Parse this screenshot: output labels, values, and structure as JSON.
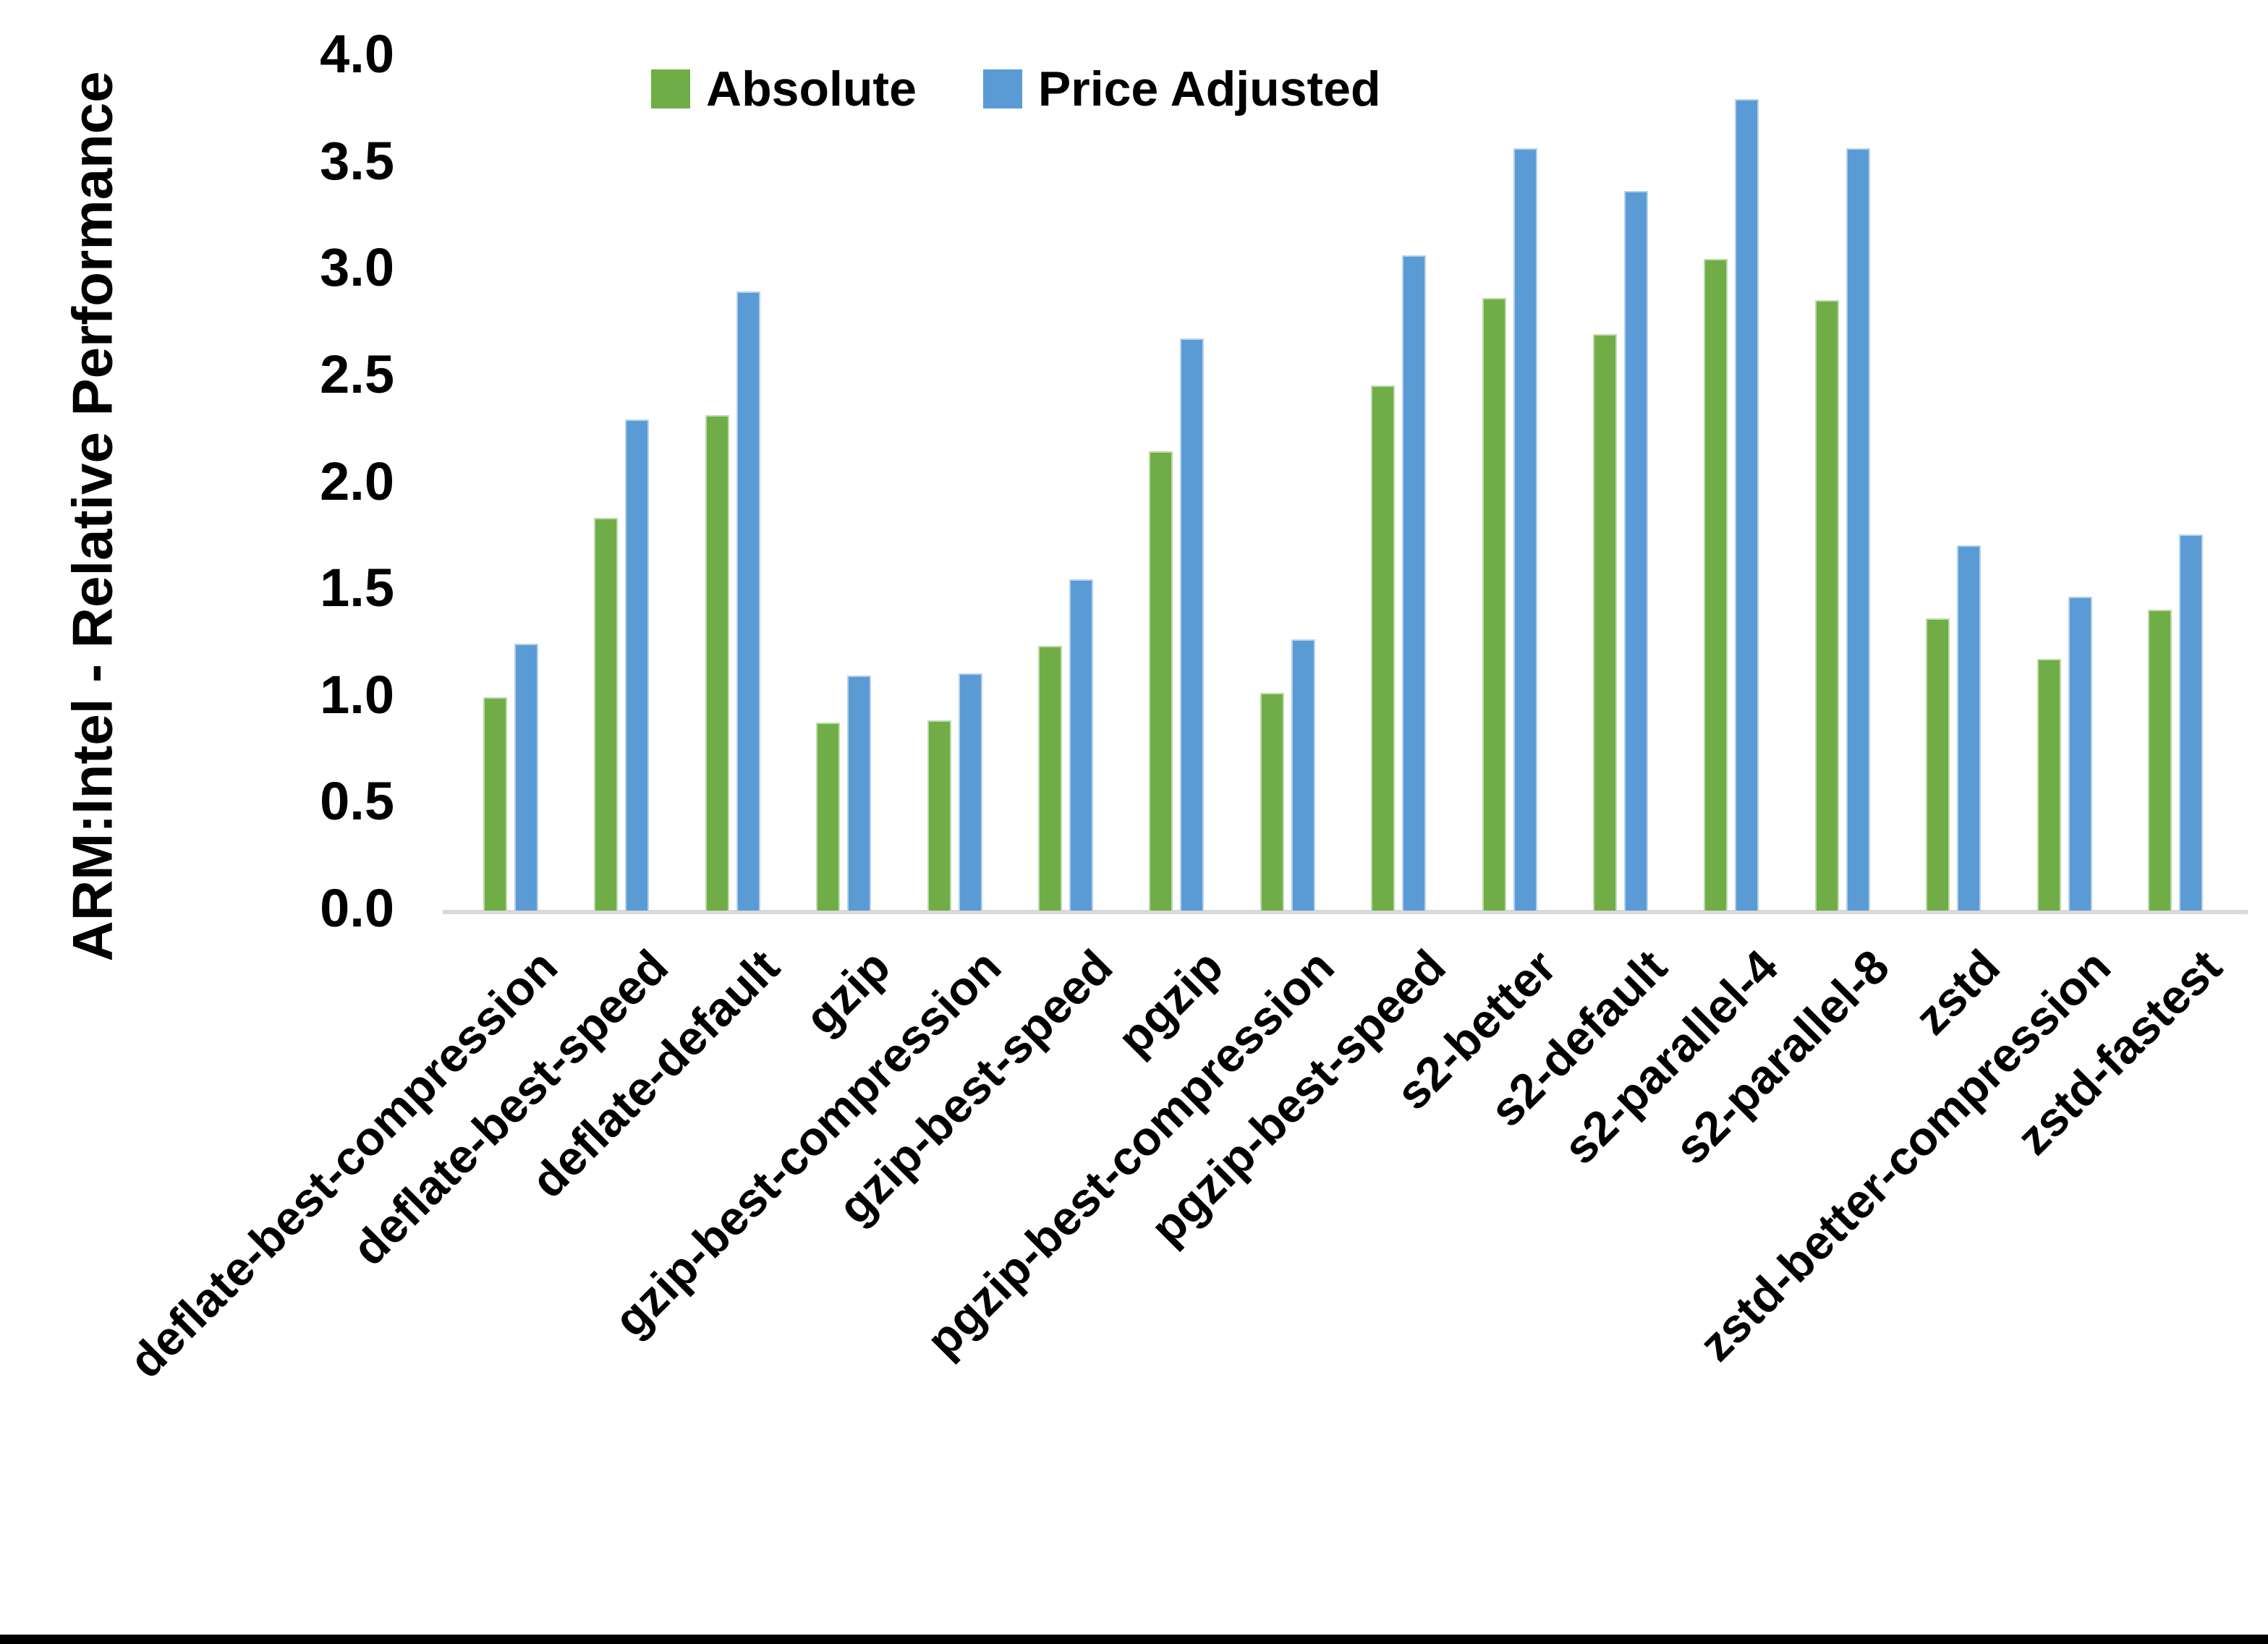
{
  "chart_data": {
    "type": "bar",
    "title": "",
    "ylabel": "ARM:Intel - Relative Performance",
    "xlabel": "",
    "ylim": [
      0.0,
      4.0
    ],
    "ytick_step": 0.5,
    "ytick_labels": [
      "0.0",
      "0.5",
      "1.0",
      "1.5",
      "2.0",
      "2.5",
      "3.0",
      "3.5",
      "4.0"
    ],
    "grid": false,
    "legend_position": "top-center",
    "categories": [
      "deflate-best-compression",
      "deflate-best-speed",
      "deflate-default",
      "gzip",
      "gzip-best-compression",
      "gzip-best-speed",
      "pgzip",
      "pgzip-best-compression",
      "pgzip-best-speed",
      "s2-better",
      "s2-default",
      "s2-parallel-4",
      "s2-parallel-8",
      "zstd",
      "zstd-better-compression",
      "zstd-fastest"
    ],
    "series": [
      {
        "name": "Absolute",
        "color": "#70AD47",
        "values": [
          1.0,
          1.84,
          2.32,
          0.88,
          0.89,
          1.24,
          2.15,
          1.02,
          2.46,
          2.87,
          2.7,
          3.05,
          2.86,
          1.37,
          1.18,
          1.41
        ]
      },
      {
        "name": "Price Adjusted",
        "color": "#5B9BD5",
        "values": [
          1.25,
          2.3,
          2.9,
          1.1,
          1.11,
          1.55,
          2.68,
          1.27,
          3.07,
          3.57,
          3.37,
          3.8,
          3.57,
          1.71,
          1.47,
          1.76
        ]
      }
    ]
  },
  "colors": {
    "background": "#ffffff",
    "axis_line": "#d9d9d9",
    "text": "#000000",
    "bottom_bar": "#000000"
  }
}
